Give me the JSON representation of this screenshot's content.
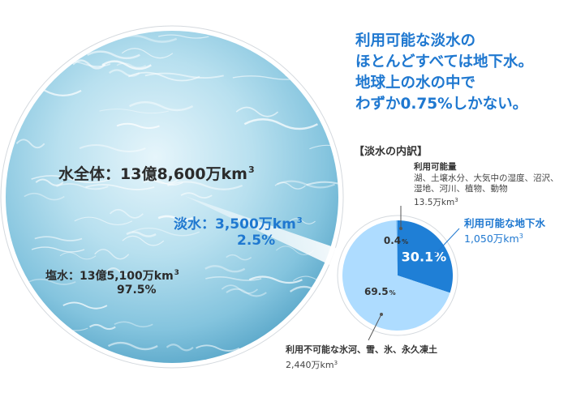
{
  "headline": [
    "利用可能な淡水の",
    "ほとんどすべては地下水。",
    "地球上の水の中で",
    "わずか0.75%しかない。"
  ],
  "breakdown_title": "【淡水の内訳】",
  "total": {
    "label": "水全体：13億8,600万km",
    "sup": "3"
  },
  "freshwater": {
    "label": "淡水：3,500万km",
    "sup": "3",
    "percent": "2.5%"
  },
  "saltwater": {
    "label": "塩水：13億5,100万km",
    "sup": "3",
    "percent": "97.5%"
  },
  "available_other": {
    "title": "利用可能量",
    "desc_lines": [
      "湖、土壌水分、大気中の湿度、沼沢、",
      "湿地、河川、植物、動物"
    ],
    "amount": "13.5万km",
    "sup": "3"
  },
  "groundwater": {
    "title": "利用可能な地下水",
    "amount": "1,050万km",
    "sup": "3"
  },
  "unavailable": {
    "title": "利用不可能な氷河、雪、氷、永久凍土",
    "amount": "2,440万km",
    "sup": "3"
  },
  "colors": {
    "accent": "#1f78d0",
    "pie_groundwater": "#1f7fd6",
    "pie_unavailable": "#aedcff",
    "pie_available": "#6fb6f0",
    "water_light": "#dff1fa",
    "water_deep": "#5aa7c9"
  },
  "chart_data": {
    "type": "pie",
    "title": "【淡水の内訳】",
    "slices": [
      {
        "label": "利用可能な地下水",
        "value": 30.1,
        "display": "30.1%",
        "unit": "%"
      },
      {
        "label": "利用不可能な氷河、雪、氷、永久凍土",
        "value": 69.5,
        "display": "69.5",
        "unit": "%"
      },
      {
        "label": "利用可能量",
        "value": 0.4,
        "display": "0.4",
        "unit": "%"
      }
    ]
  }
}
